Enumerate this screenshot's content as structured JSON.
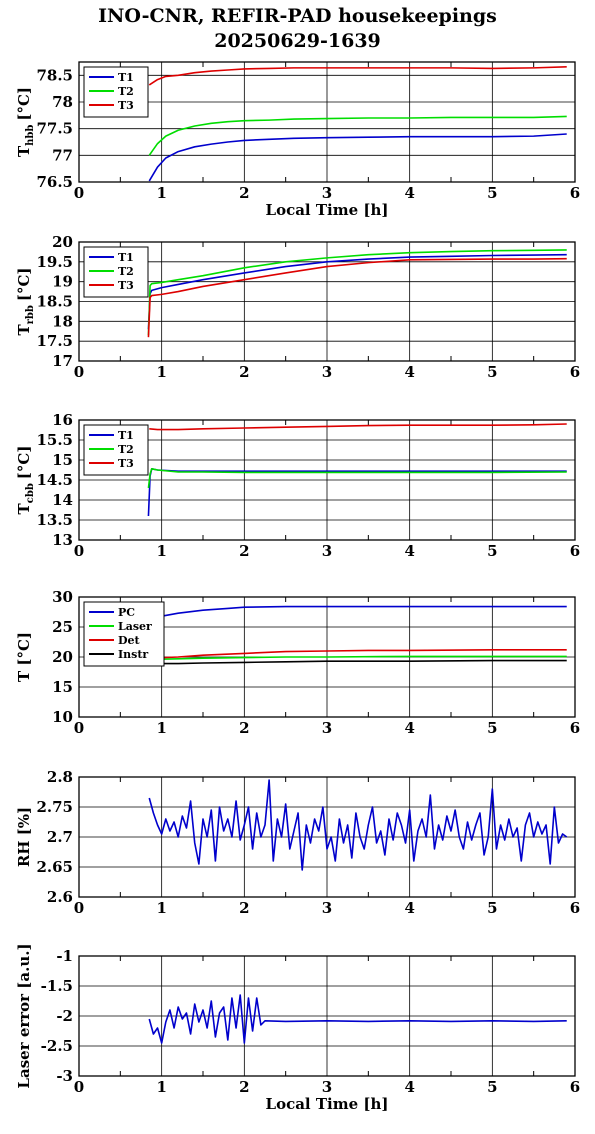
{
  "title_line1": "INO-CNR, REFIR-PAD housekeepings",
  "title_line2": "20250629-1639",
  "chart_data": [
    {
      "type": "line",
      "ylabel_main": "T",
      "ylabel_sub": "hbb",
      "ylabel_unit": "[°C]",
      "xlabel": "Local Time [h]",
      "xlim": [
        0,
        6
      ],
      "ylim": [
        76.5,
        78.75
      ],
      "xticks": [
        "0",
        "1",
        "2",
        "3",
        "4",
        "5",
        "6"
      ],
      "yticks": [
        "76.5",
        "77",
        "77.5",
        "78",
        "78.5"
      ],
      "ytick_values": [
        76.5,
        77,
        77.5,
        78,
        78.5
      ],
      "grid": true,
      "legend": "top-left",
      "series": [
        {
          "name": "T1",
          "color": "#0000cc",
          "x": [
            0.85,
            0.95,
            1.05,
            1.2,
            1.4,
            1.6,
            1.8,
            2.0,
            2.3,
            2.6,
            3.0,
            3.5,
            4.0,
            4.5,
            5.0,
            5.5,
            5.9
          ],
          "y": [
            76.52,
            76.78,
            76.95,
            77.07,
            77.16,
            77.21,
            77.25,
            77.28,
            77.3,
            77.32,
            77.33,
            77.34,
            77.35,
            77.35,
            77.35,
            77.36,
            77.4
          ]
        },
        {
          "name": "T2",
          "color": "#00dd00",
          "x": [
            0.85,
            0.95,
            1.05,
            1.2,
            1.4,
            1.6,
            1.8,
            2.0,
            2.3,
            2.6,
            3.0,
            3.5,
            4.0,
            4.5,
            5.0,
            5.5,
            5.9
          ],
          "y": [
            77.0,
            77.22,
            77.36,
            77.47,
            77.55,
            77.6,
            77.63,
            77.65,
            77.66,
            77.68,
            77.69,
            77.7,
            77.7,
            77.71,
            77.71,
            77.71,
            77.73
          ]
        },
        {
          "name": "T3",
          "color": "#dd0000",
          "x": [
            0.85,
            0.95,
            1.05,
            1.2,
            1.4,
            1.6,
            1.8,
            2.0,
            2.3,
            2.6,
            3.0,
            3.5,
            4.0,
            4.5,
            5.0,
            5.5,
            5.9
          ],
          "y": [
            78.32,
            78.42,
            78.48,
            78.5,
            78.55,
            78.58,
            78.6,
            78.62,
            78.63,
            78.64,
            78.64,
            78.64,
            78.64,
            78.64,
            78.63,
            78.64,
            78.66
          ]
        }
      ]
    },
    {
      "type": "line",
      "ylabel_main": "T",
      "ylabel_sub": "rbb",
      "ylabel_unit": "[°C]",
      "xlabel": "",
      "xlim": [
        0,
        6
      ],
      "ylim": [
        17,
        20
      ],
      "xticks": [
        "0",
        "1",
        "2",
        "3",
        "4",
        "5",
        "6"
      ],
      "yticks": [
        "17",
        "17.5",
        "18",
        "18.5",
        "19",
        "19.5",
        "20"
      ],
      "ytick_values": [
        17,
        17.5,
        18,
        18.5,
        19,
        19.5,
        20
      ],
      "grid": true,
      "legend": "top-left",
      "series": [
        {
          "name": "T1",
          "color": "#0000cc",
          "x": [
            0.84,
            0.86,
            0.88,
            1.0,
            1.2,
            1.5,
            2.0,
            2.5,
            3.0,
            3.5,
            4.0,
            4.5,
            5.0,
            5.5,
            5.9
          ],
          "y": [
            17.8,
            18.7,
            18.78,
            18.85,
            18.93,
            19.05,
            19.22,
            19.38,
            19.5,
            19.57,
            19.62,
            19.64,
            19.66,
            19.67,
            19.68
          ]
        },
        {
          "name": "T2",
          "color": "#00dd00",
          "x": [
            0.84,
            0.86,
            0.88,
            1.0,
            1.2,
            1.5,
            2.0,
            2.5,
            3.0,
            3.5,
            4.0,
            4.5,
            5.0,
            5.5,
            5.9
          ],
          "y": [
            17.65,
            18.9,
            18.95,
            18.98,
            19.05,
            19.15,
            19.35,
            19.5,
            19.6,
            19.68,
            19.73,
            19.76,
            19.78,
            19.79,
            19.8
          ]
        },
        {
          "name": "T3",
          "color": "#dd0000",
          "x": [
            0.84,
            0.86,
            0.88,
            1.0,
            1.2,
            1.5,
            2.0,
            2.5,
            3.0,
            3.5,
            4.0,
            4.5,
            5.0,
            5.5,
            5.9
          ],
          "y": [
            17.6,
            18.6,
            18.65,
            18.68,
            18.75,
            18.88,
            19.05,
            19.22,
            19.38,
            19.48,
            19.55,
            19.56,
            19.57,
            19.57,
            19.58
          ]
        }
      ]
    },
    {
      "type": "line",
      "ylabel_main": "T",
      "ylabel_sub": "cbb",
      "ylabel_unit": "[°C]",
      "xlabel": "",
      "xlim": [
        0,
        6
      ],
      "ylim": [
        13,
        16
      ],
      "xticks": [
        "0",
        "1",
        "2",
        "3",
        "4",
        "5",
        "6"
      ],
      "yticks": [
        "13",
        "13.5",
        "14",
        "14.5",
        "15",
        "15.5",
        "16"
      ],
      "ytick_values": [
        13,
        13.5,
        14,
        14.5,
        15,
        15.5,
        16
      ],
      "grid": true,
      "legend": "top-left",
      "series": [
        {
          "name": "T1",
          "color": "#0000cc",
          "x": [
            0.84,
            0.86,
            0.88,
            0.95,
            1.2,
            1.5,
            2.0,
            3.0,
            4.0,
            5.0,
            5.9
          ],
          "y": [
            13.6,
            14.6,
            14.78,
            14.75,
            14.72,
            14.72,
            14.72,
            14.72,
            14.72,
            14.72,
            14.72
          ]
        },
        {
          "name": "T2",
          "color": "#00dd00",
          "x": [
            0.84,
            0.86,
            0.88,
            0.95,
            1.2,
            1.5,
            2.0,
            3.0,
            4.0,
            5.0,
            5.9
          ],
          "y": [
            14.3,
            14.65,
            14.78,
            14.75,
            14.7,
            14.7,
            14.69,
            14.69,
            14.69,
            14.69,
            14.7
          ]
        },
        {
          "name": "T3",
          "color": "#dd0000",
          "x": [
            0.85,
            0.95,
            1.2,
            1.5,
            2.0,
            2.5,
            3.0,
            3.5,
            4.0,
            4.5,
            5.0,
            5.5,
            5.9
          ],
          "y": [
            15.78,
            15.76,
            15.76,
            15.78,
            15.8,
            15.82,
            15.84,
            15.86,
            15.87,
            15.87,
            15.87,
            15.88,
            15.9
          ]
        }
      ]
    },
    {
      "type": "line",
      "ylabel_main": "T [°C]",
      "ylabel_sub": "",
      "ylabel_unit": "",
      "xlabel": "",
      "xlim": [
        0,
        6
      ],
      "ylim": [
        10,
        30
      ],
      "xticks": [
        "0",
        "1",
        "2",
        "3",
        "4",
        "5",
        "6"
      ],
      "yticks": [
        "10",
        "15",
        "20",
        "25",
        "30"
      ],
      "ytick_values": [
        10,
        15,
        20,
        25,
        30
      ],
      "grid": true,
      "legend": "top-left",
      "series": [
        {
          "name": "PC",
          "color": "#0000cc",
          "x": [
            0.85,
            1.0,
            1.2,
            1.5,
            1.8,
            2.0,
            2.5,
            3.0,
            4.0,
            5.0,
            5.9
          ],
          "y": [
            26.0,
            26.8,
            27.3,
            27.8,
            28.1,
            28.3,
            28.4,
            28.4,
            28.4,
            28.4,
            28.4
          ]
        },
        {
          "name": "Laser",
          "color": "#00dd00",
          "x": [
            0.85,
            1.2,
            1.5,
            2.0,
            2.5,
            3.0,
            4.0,
            5.0,
            5.9
          ],
          "y": [
            19.6,
            19.7,
            19.8,
            19.9,
            20.0,
            20.0,
            20.1,
            20.1,
            20.1
          ]
        },
        {
          "name": "Det",
          "color": "#dd0000",
          "x": [
            0.85,
            1.2,
            1.5,
            2.0,
            2.5,
            3.0,
            3.5,
            4.0,
            5.0,
            5.9
          ],
          "y": [
            19.8,
            20.0,
            20.3,
            20.6,
            20.9,
            21.0,
            21.1,
            21.1,
            21.2,
            21.2
          ]
        },
        {
          "name": "Instr",
          "color": "#000000",
          "x": [
            0.85,
            1.2,
            1.5,
            2.0,
            2.5,
            3.0,
            3.5,
            4.0,
            5.0,
            5.9
          ],
          "y": [
            18.9,
            18.9,
            19.0,
            19.1,
            19.2,
            19.3,
            19.3,
            19.3,
            19.4,
            19.4
          ]
        }
      ]
    },
    {
      "type": "line",
      "ylabel_main": "RH [%]",
      "ylabel_sub": "",
      "ylabel_unit": "",
      "xlabel": "",
      "xlim": [
        0,
        6
      ],
      "ylim": [
        2.6,
        2.8
      ],
      "xticks": [
        "0",
        "1",
        "2",
        "3",
        "4",
        "5",
        "6"
      ],
      "yticks": [
        "2.6",
        "2.65",
        "2.7",
        "2.75",
        "2.8"
      ],
      "ytick_values": [
        2.6,
        2.65,
        2.7,
        2.75,
        2.8
      ],
      "grid": true,
      "legend": "none",
      "series": [
        {
          "name": "",
          "color": "#0000cc",
          "x": [
            0.85,
            0.9,
            0.95,
            1.0,
            1.05,
            1.1,
            1.15,
            1.2,
            1.25,
            1.3,
            1.35,
            1.4,
            1.45,
            1.5,
            1.55,
            1.6,
            1.65,
            1.7,
            1.75,
            1.8,
            1.85,
            1.9,
            1.95,
            2.0,
            2.05,
            2.1,
            2.15,
            2.2,
            2.25,
            2.3,
            2.35,
            2.4,
            2.45,
            2.5,
            2.55,
            2.6,
            2.65,
            2.7,
            2.75,
            2.8,
            2.85,
            2.9,
            2.95,
            3.0,
            3.05,
            3.1,
            3.15,
            3.2,
            3.25,
            3.3,
            3.35,
            3.4,
            3.45,
            3.5,
            3.55,
            3.6,
            3.65,
            3.7,
            3.75,
            3.8,
            3.85,
            3.9,
            3.95,
            4.0,
            4.05,
            4.1,
            4.15,
            4.2,
            4.25,
            4.3,
            4.35,
            4.4,
            4.45,
            4.5,
            4.55,
            4.6,
            4.65,
            4.7,
            4.75,
            4.8,
            4.85,
            4.9,
            4.95,
            5.0,
            5.05,
            5.1,
            5.15,
            5.2,
            5.25,
            5.3,
            5.35,
            5.4,
            5.45,
            5.5,
            5.55,
            5.6,
            5.65,
            5.7,
            5.75,
            5.8,
            5.85,
            5.9
          ],
          "y": [
            2.765,
            2.74,
            2.72,
            2.705,
            2.73,
            2.71,
            2.725,
            2.7,
            2.735,
            2.715,
            2.76,
            2.69,
            2.655,
            2.73,
            2.7,
            2.745,
            2.66,
            2.75,
            2.71,
            2.73,
            2.7,
            2.76,
            2.695,
            2.72,
            2.75,
            2.68,
            2.74,
            2.7,
            2.72,
            2.795,
            2.66,
            2.73,
            2.7,
            2.755,
            2.68,
            2.71,
            2.74,
            2.645,
            2.72,
            2.69,
            2.73,
            2.71,
            2.75,
            2.68,
            2.7,
            2.66,
            2.73,
            2.69,
            2.72,
            2.665,
            2.74,
            2.7,
            2.68,
            2.72,
            2.75,
            2.69,
            2.71,
            2.67,
            2.73,
            2.695,
            2.74,
            2.72,
            2.69,
            2.745,
            2.66,
            2.71,
            2.73,
            2.7,
            2.77,
            2.68,
            2.72,
            2.695,
            2.735,
            2.71,
            2.745,
            2.7,
            2.68,
            2.725,
            2.695,
            2.72,
            2.74,
            2.67,
            2.7,
            2.78,
            2.68,
            2.72,
            2.695,
            2.73,
            2.7,
            2.715,
            2.66,
            2.72,
            2.74,
            2.7,
            2.725,
            2.705,
            2.72,
            2.655,
            2.75,
            2.69,
            2.705,
            2.7
          ]
        }
      ]
    },
    {
      "type": "line",
      "ylabel_main": "Laser error [a.u.]",
      "ylabel_sub": "",
      "ylabel_unit": "",
      "xlabel": "Local Time [h]",
      "xlim": [
        0,
        6
      ],
      "ylim": [
        -3,
        -1
      ],
      "xticks": [
        "0",
        "1",
        "2",
        "3",
        "4",
        "5",
        "6"
      ],
      "yticks": [
        "-3",
        "-2.5",
        "-2",
        "-1.5",
        "-1"
      ],
      "ytick_values": [
        -3,
        -2.5,
        -2,
        -1.5,
        -1
      ],
      "grid": true,
      "legend": "none",
      "series": [
        {
          "name": "",
          "color": "#0000cc",
          "x": [
            0.85,
            0.9,
            0.95,
            1.0,
            1.05,
            1.1,
            1.15,
            1.2,
            1.25,
            1.3,
            1.35,
            1.4,
            1.45,
            1.5,
            1.55,
            1.6,
            1.65,
            1.7,
            1.75,
            1.8,
            1.85,
            1.9,
            1.95,
            2.0,
            2.05,
            2.1,
            2.15,
            2.2,
            2.25,
            2.5,
            3.0,
            3.5,
            4.0,
            4.5,
            5.0,
            5.5,
            5.9
          ],
          "y": [
            -2.05,
            -2.3,
            -2.2,
            -2.45,
            -2.1,
            -1.9,
            -2.2,
            -1.85,
            -2.05,
            -1.95,
            -2.3,
            -1.8,
            -2.1,
            -1.9,
            -2.2,
            -1.75,
            -2.35,
            -1.95,
            -1.85,
            -2.4,
            -1.7,
            -2.2,
            -1.65,
            -2.45,
            -1.7,
            -2.25,
            -1.7,
            -2.15,
            -2.08,
            -2.09,
            -2.08,
            -2.09,
            -2.08,
            -2.09,
            -2.08,
            -2.09,
            -2.08
          ]
        }
      ]
    }
  ]
}
